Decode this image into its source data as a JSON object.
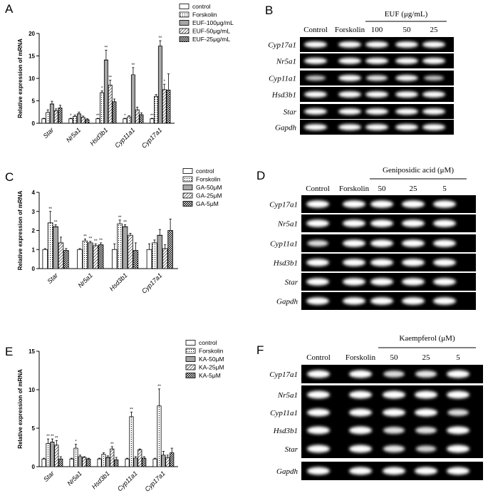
{
  "panel_letters": [
    "A",
    "B",
    "C",
    "D",
    "E",
    "F"
  ],
  "chart_data": [
    {
      "type": "bar",
      "panel": "A",
      "ylabel": "Relative expression of mRNA",
      "ylim": [
        0,
        20
      ],
      "yticks": [
        0,
        5,
        10,
        15,
        20
      ],
      "categories": [
        "Star",
        "Nr5a1",
        "Hsd3b1",
        "Cyp11a1",
        "Cyp17a1"
      ],
      "legend_position": "top-right",
      "series": [
        {
          "name": "control",
          "pattern": "none",
          "values": [
            1.0,
            1.0,
            1.0,
            1.0,
            1.0
          ],
          "errors": [
            0.1,
            0.1,
            0.1,
            0.1,
            0.1
          ]
        },
        {
          "name": "Forskolin",
          "pattern": "dots",
          "values": [
            2.4,
            1.5,
            6.8,
            1.4,
            6.0
          ],
          "errors": [
            0.6,
            0.3,
            0.4,
            0.3,
            0.4
          ]
        },
        {
          "name": "EUF-100μg/mL",
          "pattern": "hlines",
          "values": [
            4.3,
            2.1,
            14.1,
            10.8,
            17.2
          ],
          "errors": [
            0.6,
            0.4,
            2.2,
            1.6,
            1.2
          ]
        },
        {
          "name": "EUF-50μg/mL",
          "pattern": "diag",
          "values": [
            2.8,
            1.3,
            8.5,
            3.0,
            7.5
          ],
          "errors": [
            0.4,
            0.3,
            1.1,
            0.6,
            1.2
          ]
        },
        {
          "name": "EUF-25μg/mL",
          "pattern": "check",
          "values": [
            3.4,
            0.8,
            4.8,
            1.9,
            7.4
          ],
          "errors": [
            0.6,
            0.2,
            0.6,
            0.4,
            3.6
          ]
        }
      ],
      "significance": [
        [
          "",
          "*",
          "**",
          "*",
          "**"
        ],
        [
          "",
          "",
          "*",
          "",
          ""
        ],
        [
          "",
          "",
          "**",
          "**",
          "**"
        ],
        [
          "",
          "",
          "**",
          "",
          "*"
        ],
        [
          "",
          "",
          "",
          "",
          ""
        ]
      ]
    },
    {
      "type": "bar",
      "panel": "C",
      "ylabel": "Relative expression of mRNA",
      "ylim": [
        0,
        4
      ],
      "yticks": [
        0,
        1,
        2,
        3,
        4
      ],
      "categories": [
        "Star",
        "Nr5a1",
        "Hsd3b1",
        "Cyp17a1"
      ],
      "legend_position": "top-right",
      "series": [
        {
          "name": "control",
          "pattern": "none",
          "values": [
            1.0,
            1.0,
            1.0,
            1.0
          ],
          "errors": [
            0.05,
            0.05,
            0.3,
            0.3
          ]
        },
        {
          "name": "Forskolin",
          "pattern": "dots",
          "values": [
            2.4,
            1.45,
            2.35,
            1.35
          ],
          "errors": [
            0.6,
            0.1,
            0.2,
            0.15
          ]
        },
        {
          "name": "GA-50μM",
          "pattern": "hlines",
          "values": [
            2.2,
            1.35,
            2.2,
            1.75
          ],
          "errors": [
            0.1,
            0.08,
            0.1,
            0.3
          ]
        },
        {
          "name": "GA-25μM",
          "pattern": "diag",
          "values": [
            1.35,
            1.2,
            1.75,
            1.05
          ],
          "errors": [
            0.3,
            0.1,
            0.1,
            0.2
          ]
        },
        {
          "name": "GA-5μM",
          "pattern": "check",
          "values": [
            0.95,
            1.25,
            0.95,
            2.0
          ],
          "errors": [
            0.1,
            0.1,
            0.4,
            0.6
          ]
        }
      ],
      "significance": [
        [
          "",
          "",
          "",
          ""
        ],
        [
          "**",
          "**",
          "**",
          ""
        ],
        [
          "**",
          "**",
          "**",
          ""
        ],
        [
          "",
          "**",
          "",
          ""
        ],
        [
          "",
          "**",
          "",
          ""
        ]
      ]
    },
    {
      "type": "bar",
      "panel": "E",
      "ylabel": "Relative expression of mRNA",
      "ylim": [
        0,
        15
      ],
      "yticks": [
        0,
        5,
        10,
        15
      ],
      "categories": [
        "Star",
        "Nr5a1",
        "Hsd3b1",
        "Cyp11a1",
        "Cyp17a1"
      ],
      "legend_position": "top-right",
      "series": [
        {
          "name": "control",
          "pattern": "none",
          "values": [
            1.0,
            1.0,
            1.0,
            1.0,
            1.0
          ],
          "errors": [
            0.1,
            0.1,
            0.1,
            0.1,
            0.1
          ]
        },
        {
          "name": "Forskolin",
          "pattern": "dots",
          "values": [
            3.0,
            2.4,
            1.6,
            6.5,
            7.9
          ],
          "errors": [
            0.6,
            0.5,
            0.2,
            0.6,
            2.2
          ]
        },
        {
          "name": "KA-50μM",
          "pattern": "hlines",
          "values": [
            3.2,
            1.3,
            1.2,
            1.1,
            1.5
          ],
          "errors": [
            0.4,
            0.2,
            0.2,
            0.2,
            0.5
          ]
        },
        {
          "name": "KA-25μM",
          "pattern": "diag",
          "values": [
            2.8,
            1.2,
            2.3,
            2.2,
            1.2
          ],
          "errors": [
            0.6,
            0.1,
            0.3,
            0.1,
            0.3
          ]
        },
        {
          "name": "KA-5μM",
          "pattern": "check",
          "values": [
            1.0,
            1.0,
            0.9,
            1.1,
            1.8
          ],
          "errors": [
            0.3,
            0.1,
            0.3,
            0.2,
            0.6
          ]
        }
      ],
      "significance": [
        [
          "",
          "",
          "",
          "",
          ""
        ],
        [
          "**",
          "*",
          "",
          "**",
          "**"
        ],
        [
          "**",
          "",
          "",
          "",
          ""
        ],
        [
          "**",
          "",
          "**",
          "",
          ""
        ],
        [
          "",
          "",
          "",
          "",
          ""
        ]
      ]
    }
  ],
  "gels": [
    {
      "panel": "B",
      "treatment_label": "EUF (μg/mL)",
      "lanes": [
        "Control",
        "Forskolin",
        "100",
        "50",
        "25"
      ],
      "genes": [
        "Cyp17a1",
        "Nr5a1",
        "Cyp11a1",
        "Hsd3b1",
        "Star",
        "Gapdh"
      ]
    },
    {
      "panel": "D",
      "treatment_label": "Geniposidic acid (μM)",
      "lanes": [
        "Control",
        "Forskolin",
        "50",
        "25",
        "5"
      ],
      "genes": [
        "Cyp17a1",
        "Nr5a1",
        "Cyp11a1",
        "Hsd3b1",
        "Star",
        "Gapdh"
      ]
    },
    {
      "panel": "F",
      "treatment_label": "Kaempferol (μM)",
      "lanes": [
        "Control",
        "Forskolin",
        "50",
        "25",
        "5"
      ],
      "genes": [
        "Cyp17a1",
        "Nr5a1",
        "Cyp11a1",
        "Hsd3b1",
        "Star",
        "Gapdh"
      ]
    }
  ]
}
